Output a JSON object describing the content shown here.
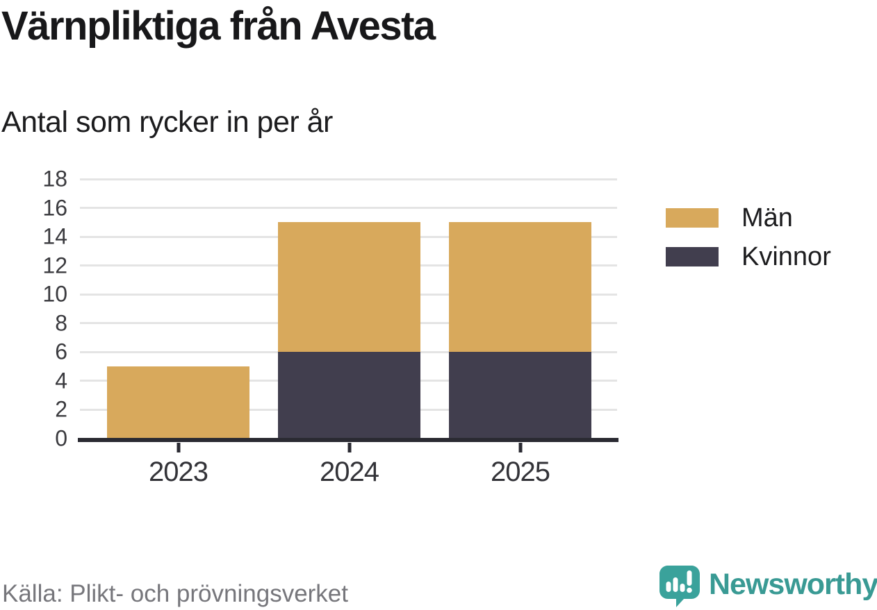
{
  "header": {
    "title": "Värnpliktiga från Avesta",
    "subtitle": "Antal som rycker in per år"
  },
  "chart_data": {
    "type": "bar",
    "stacked": true,
    "title": "Värnpliktiga från Avesta",
    "subtitle": "Antal som rycker in per år",
    "categories": [
      "2023",
      "2024",
      "2025"
    ],
    "series": [
      {
        "name": "Män",
        "color": "#d8a95c",
        "values": [
          5,
          9,
          9
        ]
      },
      {
        "name": "Kvinnor",
        "color": "#413e4e",
        "values": [
          0,
          6,
          6
        ]
      }
    ],
    "stack_order_bottom_to_top": [
      "Kvinnor",
      "Män"
    ],
    "totals": [
      5,
      15,
      15
    ],
    "ylim": [
      0,
      18
    ],
    "yticks": [
      0,
      2,
      4,
      6,
      8,
      10,
      12,
      14,
      16,
      18
    ],
    "grid": "horizontal",
    "gridline_color": "#e4e4e4",
    "axis_color": "#2a2a32",
    "tick_label_color": "#3a3a3e",
    "legend_position": "right",
    "xlabel": "",
    "ylabel": ""
  },
  "footer": {
    "source": "Källa: Plikt- och prövningsverket",
    "brand": {
      "name": "Newsworthy",
      "text_color": "#399a94",
      "icon_color": "#3aa29b",
      "icon": "newsworthy-speech-bubble-chart-icon"
    }
  }
}
